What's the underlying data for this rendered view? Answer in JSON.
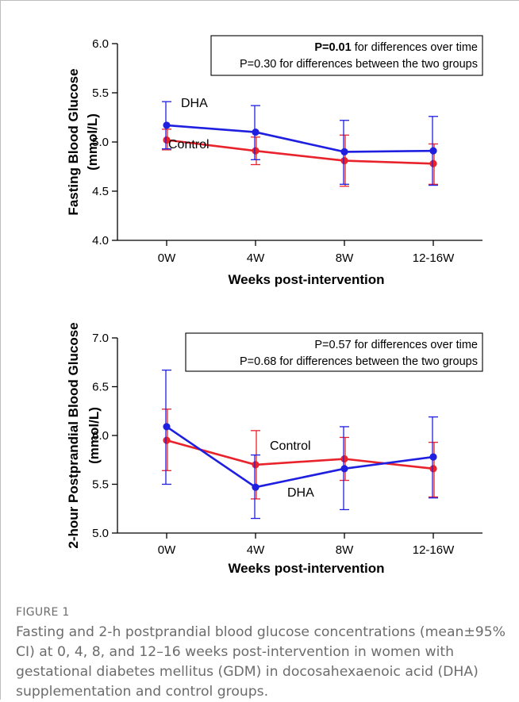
{
  "chart_data": [
    {
      "type": "line",
      "ylabel_line1": "Fasting Blood Glucose",
      "ylabel_line2": "(mmol/L)",
      "xlabel": "Weeks post-intervention",
      "categories": [
        "0W",
        "4W",
        "8W",
        "12-16W"
      ],
      "yticks": [
        "4.0",
        "4.5",
        "5.0",
        "5.5",
        "6.0"
      ],
      "ylim": [
        4.0,
        6.0
      ],
      "series": [
        {
          "name": "DHA",
          "color": "#1f1fe0",
          "values": [
            5.17,
            5.1,
            4.9,
            4.91
          ],
          "err_low": [
            4.93,
            4.82,
            4.57,
            4.56
          ],
          "err_high": [
            5.41,
            5.37,
            5.22,
            5.26
          ]
        },
        {
          "name": "Control",
          "color": "#e8232b",
          "values": [
            5.02,
            4.91,
            4.81,
            4.78
          ],
          "err_low": [
            4.92,
            4.77,
            4.55,
            4.57
          ],
          "err_high": [
            5.13,
            5.05,
            5.07,
            4.98
          ]
        }
      ],
      "annotation": {
        "line1_bold": "P=0.01",
        "line1_rest": " for differences over time",
        "line2": "P=0.30 for differences between  the two groups"
      }
    },
    {
      "type": "line",
      "ylabel_line1": "2-hour Postprandial Blood Glucose",
      "ylabel_line2": "(mmol/L)",
      "xlabel": "Weeks post-intervention",
      "categories": [
        "0W",
        "4W",
        "8W",
        "12-16W"
      ],
      "yticks": [
        "5.0",
        "5.5",
        "6.0",
        "6.5",
        "7.0"
      ],
      "ylim": [
        5.0,
        7.0
      ],
      "series": [
        {
          "name": "DHA",
          "color": "#1f1fe0",
          "values": [
            6.09,
            5.47,
            5.66,
            5.78
          ],
          "err_low": [
            5.5,
            5.15,
            5.24,
            5.36
          ],
          "err_high": [
            6.67,
            5.8,
            6.09,
            6.19
          ]
        },
        {
          "name": "Control",
          "color": "#e8232b",
          "values": [
            5.95,
            5.7,
            5.76,
            5.66
          ],
          "err_low": [
            5.64,
            5.35,
            5.54,
            5.37
          ],
          "err_high": [
            6.27,
            6.05,
            5.98,
            5.93
          ]
        }
      ],
      "annotation": {
        "line1_bold": "",
        "line1_rest": "P=0.57 for differences over time",
        "line2": "P=0.68 for differences between the two groups"
      }
    }
  ],
  "caption": {
    "label": "FIGURE 1",
    "text": "Fasting and 2-h postprandial blood glucose concentrations (mean±95% CI) at 0, 4, 8, and 12–16 weeks post-intervention in women with gestational diabetes mellitus (GDM) in docosahexaenoic acid (DHA) supplementation and control groups."
  }
}
